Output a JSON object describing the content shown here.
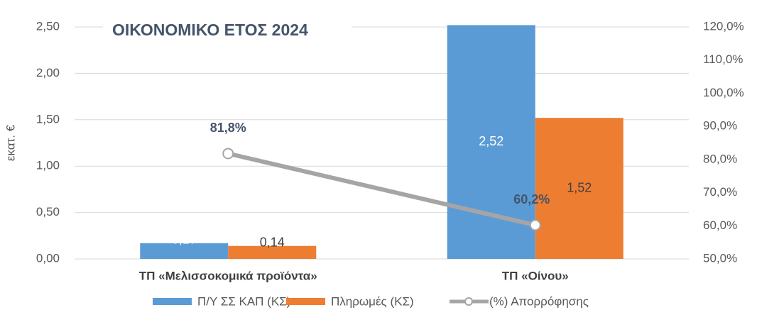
{
  "chart_data": {
    "type": "bar-line",
    "title": "ΟΙΚΟΝΟΜΙΚΟ ΕΤΟΣ 2024",
    "ylabel": "εκατ. €",
    "categories": [
      "ΤΠ «Μελισσοκομικά προϊόντα»",
      "ΤΠ «Οίνου»"
    ],
    "series": [
      {
        "name": "Π/Υ ΣΣ ΚΑΠ (ΚΣ)",
        "type": "bar",
        "color": "#5b9bd5",
        "values": [
          0.17,
          2.52
        ],
        "value_labels": [
          "0,17",
          "2,52"
        ]
      },
      {
        "name": "Πληρωμές (ΚΣ)",
        "type": "bar",
        "color": "#ed7d31",
        "values": [
          0.14,
          1.52
        ],
        "value_labels": [
          "0,14",
          "1,52"
        ]
      },
      {
        "name": "(%) Απορρόφησης",
        "type": "line",
        "axis": "y2",
        "color": "#a5a5a5",
        "values": [
          81.8,
          60.2
        ],
        "value_labels": [
          "81,8%",
          "60,2%"
        ]
      }
    ],
    "ylim": [
      0,
      2.5
    ],
    "yticks": [
      {
        "value": 0,
        "label": "0,00"
      },
      {
        "value": 0.5,
        "label": "0,50"
      },
      {
        "value": 1,
        "label": "1,00"
      },
      {
        "value": 1.5,
        "label": "1,50"
      },
      {
        "value": 2,
        "label": "2,00"
      },
      {
        "value": 2.5,
        "label": "2,50"
      }
    ],
    "y2lim": [
      50,
      120
    ],
    "y2ticks": [
      {
        "value": 50,
        "label": "50,0%"
      },
      {
        "value": 60,
        "label": "60,0%"
      },
      {
        "value": 70,
        "label": "70,0%"
      },
      {
        "value": 80,
        "label": "80,0%"
      },
      {
        "value": 90,
        "label": "90,0%"
      },
      {
        "value": 100,
        "label": "100,0%"
      },
      {
        "value": 110,
        "label": "110,0%"
      },
      {
        "value": 120,
        "label": "120,0%"
      }
    ],
    "grid": true,
    "legend": "bottom"
  }
}
